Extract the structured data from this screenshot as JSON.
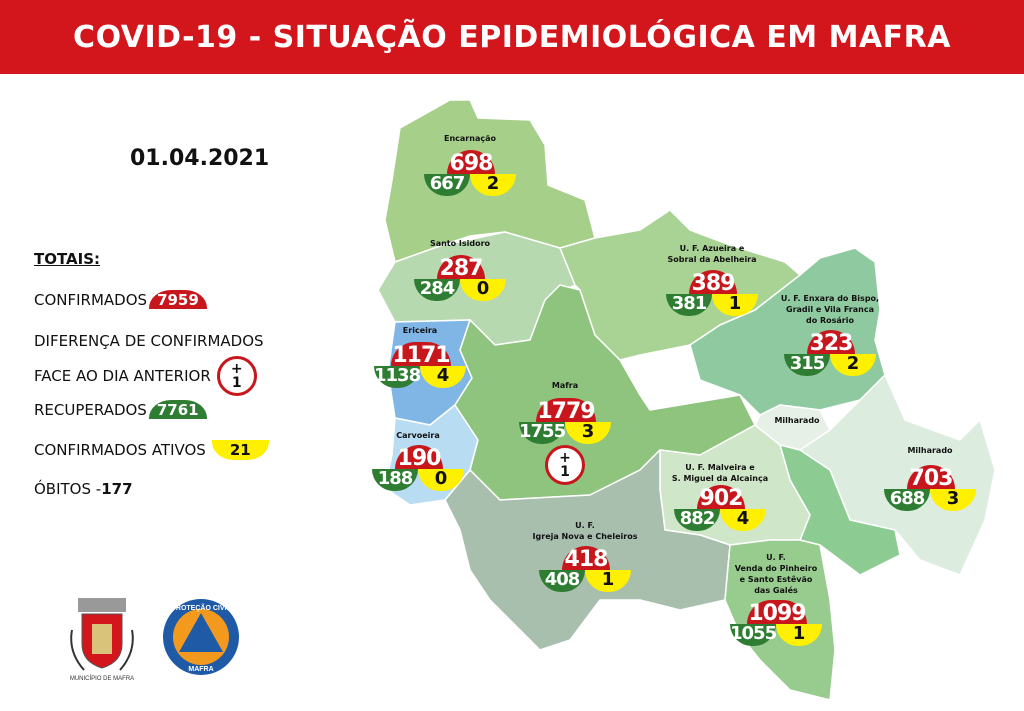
{
  "header": {
    "title": "COVID-19 - SITUAÇÃO EPIDEMIOLÓGICA EM MAFRA"
  },
  "date": "01.04.2021",
  "colors": {
    "banner": "#d3151c",
    "confirmed": "#c8161d",
    "recovered": "#2e7d32",
    "active": "#fff000"
  },
  "legend": {
    "title": "TOTAIS:",
    "confirmed_label": "CONFIRMADOS",
    "confirmed_value": "7959",
    "diff_label_1": "DIFERENÇA DE CONFIRMADOS",
    "diff_label_2": "FACE AO DIA ANTERIOR",
    "diff_sign": "+",
    "diff_value": "1",
    "recovered_label": "RECUPERADOS",
    "recovered_value": "7761",
    "active_label": "CONFIRMADOS ATIVOS",
    "active_value": "21",
    "deaths_label": "ÓBITOS - ",
    "deaths_value": "177"
  },
  "parishes": [
    {
      "name": "Encarnação",
      "confirmed": "698",
      "recovered": "667",
      "active": "2"
    },
    {
      "name": "Santo Isidoro",
      "confirmed": "287",
      "recovered": "284",
      "active": "0"
    },
    {
      "name": "Ericeira",
      "confirmed": "1171",
      "recovered": "1138",
      "active": "4"
    },
    {
      "name": "Carvoeira",
      "confirmed": "190",
      "recovered": "188",
      "active": "0"
    },
    {
      "name": "Mafra",
      "confirmed": "1779",
      "recovered": "1755",
      "active": "3",
      "diff_sign": "+",
      "diff": "1"
    },
    {
      "name": "U. F. Azueira e\nSobral da Abelheira",
      "confirmed": "389",
      "recovered": "381",
      "active": "1"
    },
    {
      "name": "U. F. Enxara do Bispo,\nGradil e Vila Franca\ndo Rosário",
      "confirmed": "323",
      "recovered": "315",
      "active": "2"
    },
    {
      "name": "Milharado",
      "confirmed": "703",
      "recovered": "688",
      "active": "3"
    },
    {
      "name": "U. F. Malveira e\nS. Miguel da Alcainça",
      "confirmed": "902",
      "recovered": "882",
      "active": "4"
    },
    {
      "name": "U. F.\nIgreja Nova e Cheleiros",
      "confirmed": "418",
      "recovered": "408",
      "active": "1"
    },
    {
      "name": "U. F.\nVenda do Pinheiro\ne Santo Estêvão\ndas Galés",
      "confirmed": "1099",
      "recovered": "1055",
      "active": "1"
    }
  ],
  "map_labels": {
    "milharado_mid": "Milharado"
  },
  "logos": {
    "municipio": "MUNICÍPIO DE MAFRA",
    "protecao_top": "PROTEÇÃO CIVIL",
    "protecao_bottom": "MAFRA"
  }
}
